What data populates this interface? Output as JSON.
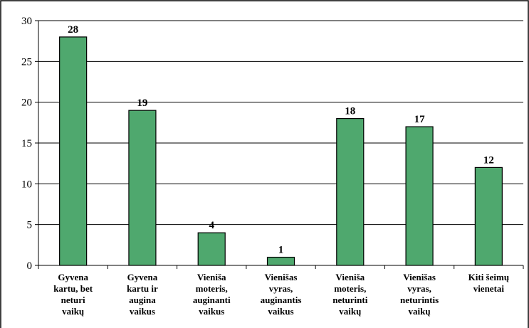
{
  "chart_data": {
    "type": "bar",
    "categories": [
      "Gyvena kartu, bet neturi vaikų",
      "Gyvena kartu ir augina vaikus",
      "Vieniša moteris, auginanti vaikus",
      "Vienišas vyras, auginantis vaikus",
      "Vieniša moteris, neturinti vaikų",
      "Vienišas vyras, neturintis vaikų",
      "Kiti šeimų vienetai"
    ],
    "category_lines": [
      [
        "Gyvena",
        "kartu, bet",
        "neturi",
        "vaikų"
      ],
      [
        "Gyvena",
        "kartu ir",
        "augina",
        "vaikus"
      ],
      [
        "Vieniša",
        "moteris,",
        "auginanti",
        "vaikus"
      ],
      [
        "Vienišas",
        "vyras,",
        "auginantis",
        "vaikus"
      ],
      [
        "Vieniša",
        "moteris,",
        "neturinti",
        "vaikų"
      ],
      [
        "Vienišas",
        "vyras,",
        "neturintis",
        "vaikų"
      ],
      [
        "Kiti šeimų",
        "vienetai"
      ]
    ],
    "values": [
      28,
      19,
      4,
      1,
      18,
      17,
      12
    ],
    "data_labels": [
      "28",
      "19",
      "4",
      "1",
      "18",
      "17",
      "12"
    ],
    "title": "",
    "xlabel": "",
    "ylabel": "",
    "ylim": [
      0,
      30
    ],
    "yticks": [
      0,
      5,
      10,
      15,
      20,
      25,
      30
    ],
    "ytick_labels": [
      "0",
      "5",
      "10",
      "15",
      "20",
      "25",
      "30"
    ],
    "grid": true,
    "legend": "none",
    "bar_color": "#4fa86e"
  }
}
